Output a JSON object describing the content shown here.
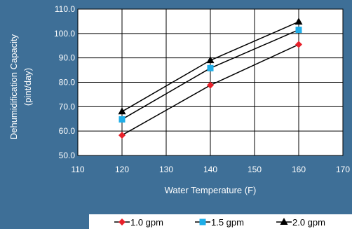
{
  "chart_data": {
    "type": "line",
    "x": [
      120,
      140,
      160
    ],
    "series": [
      {
        "name": "1.0 gpm",
        "values": [
          58.3,
          78.8,
          95.5
        ],
        "color": "#e8202a",
        "marker": "diamond"
      },
      {
        "name": "1.5 gpm",
        "values": [
          64.8,
          85.8,
          101.5
        ],
        "color": "#1faee8",
        "marker": "square"
      },
      {
        "name": "2.0 gpm",
        "values": [
          68.0,
          89.0,
          104.8
        ],
        "color": "#000000",
        "marker": "triangle"
      }
    ],
    "xlabel": "Water Temperature (F)",
    "ylabel_line1": "Dehumidification Capacity",
    "ylabel_line2": "(pint/day)",
    "xlim": [
      110,
      170
    ],
    "ylim": [
      50,
      110
    ],
    "xticks": [
      "110",
      "120",
      "130",
      "140",
      "150",
      "160",
      "170"
    ],
    "yticks": [
      "50.0",
      "60.0",
      "70.0",
      "80.0",
      "90.0",
      "100.0",
      "110.0"
    ],
    "grid": true,
    "legend_position": "bottom",
    "line_color": "#000000",
    "plot_background": "#ffffff",
    "background": "#3e6f97"
  }
}
